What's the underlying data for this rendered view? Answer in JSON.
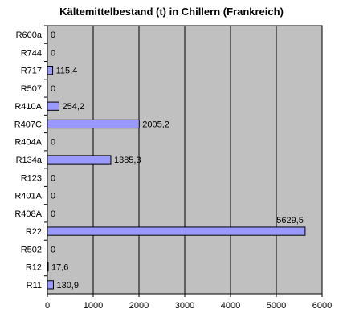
{
  "chart_data": {
    "type": "bar",
    "orientation": "horizontal",
    "title": "Kältemittelbestand (t) in Chillern (Frankreich)",
    "xlabel": "",
    "ylabel": "",
    "categories": [
      "R600a",
      "R744",
      "R717",
      "R507",
      "R410A",
      "R407C",
      "R404A",
      "R134a",
      "R123",
      "R401A",
      "R408A",
      "R22",
      "R502",
      "R12",
      "R11"
    ],
    "values": [
      0,
      0,
      115.4,
      0,
      254.2,
      2005.2,
      0,
      1385.3,
      0,
      0,
      0,
      5629.5,
      0,
      17.6,
      130.9
    ],
    "value_labels": [
      "0",
      "0",
      "115,4",
      "0",
      "254,2",
      "2005,2",
      "0",
      "1385,3",
      "0",
      "0",
      "0",
      "5629,5",
      "0",
      "17,6",
      "130,9"
    ],
    "xlim": [
      0,
      6000
    ],
    "xticks": [
      0,
      1000,
      2000,
      3000,
      4000,
      5000,
      6000
    ],
    "grid": "vertical",
    "legend": "none",
    "colors": {
      "plot_background": "#c0c0c0",
      "bar_fill": "#9999ff",
      "bar_stroke": "#000000",
      "gridline": "#000000"
    }
  }
}
